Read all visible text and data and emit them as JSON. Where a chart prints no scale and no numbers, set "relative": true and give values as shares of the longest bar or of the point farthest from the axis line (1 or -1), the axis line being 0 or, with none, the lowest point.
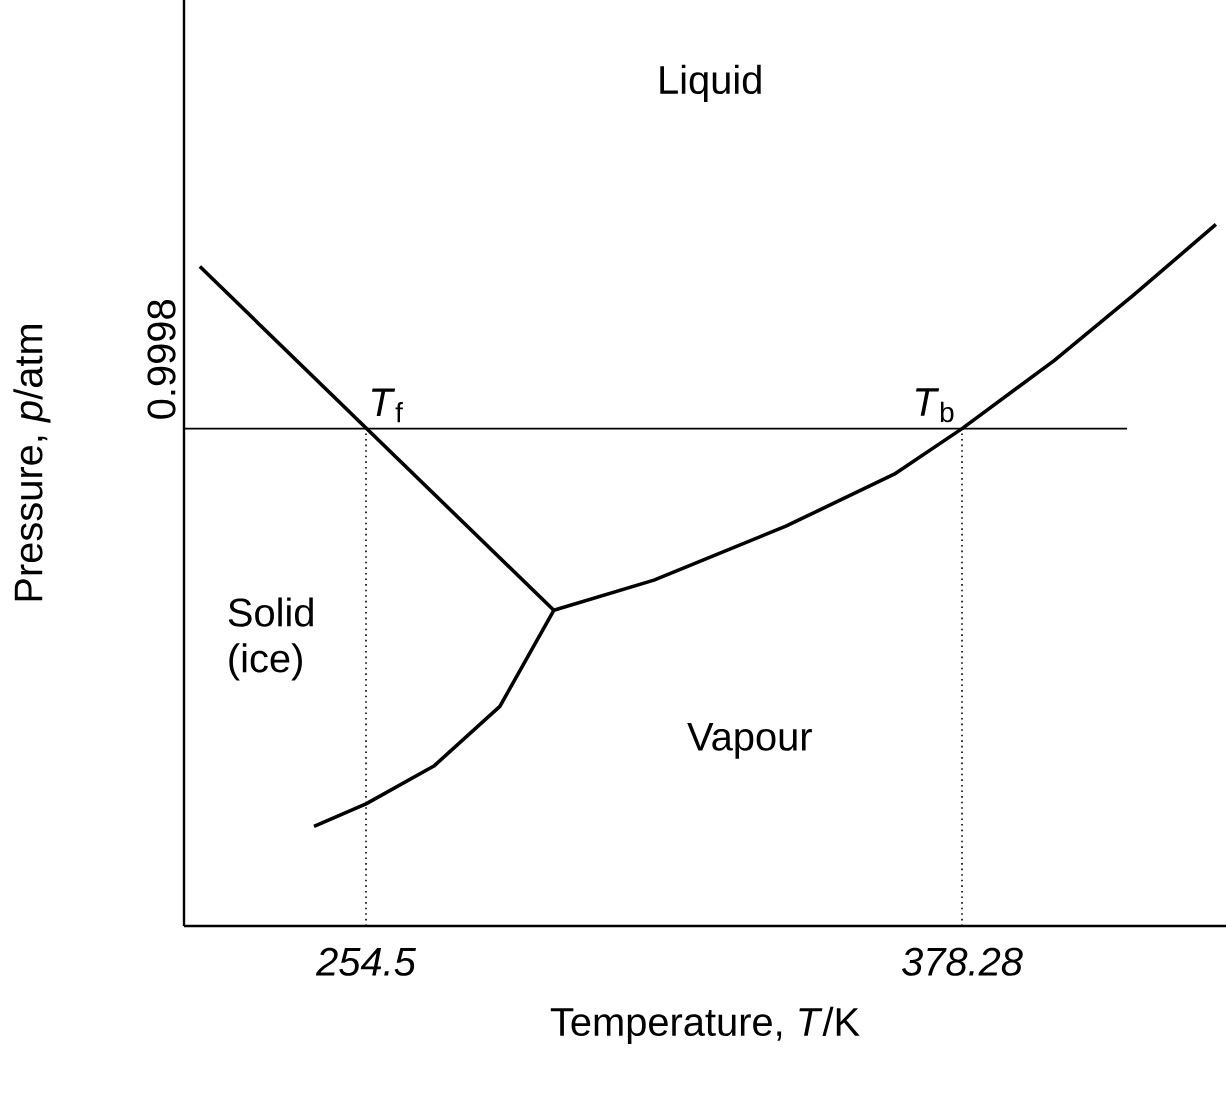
{
  "chart_data": {
    "type": "line",
    "relative": true,
    "xlabel": "Temperature, *T*/K",
    "ylabel": "Pressure, *p*/atm",
    "xlim": [
      216.7,
      433.1
    ],
    "xticks": [
      254.5,
      378.28
    ],
    "series": [
      {
        "color": "#000000",
        "x": [
          220.0,
          293.5
        ],
        "values": [
          0.94,
          0.45
        ]
      },
      {
        "color": "#000000",
        "x": [
          243.7,
          254.5,
          268.6,
          282.3,
          293.5,
          314.3,
          341.7,
          364.2,
          378.28,
          397.4,
          414.0,
          431.0
        ],
        "values": [
          0.142,
          0.174,
          0.228,
          0.313,
          0.45,
          0.493,
          0.57,
          0.644,
          0.709,
          0.806,
          0.9,
          1.0
        ]
      }
    ],
    "ref_lines": [
      {
        "axis": "y",
        "value": 0.709,
        "line_style": "solid"
      },
      {
        "axis": "x",
        "value": 254.5,
        "line_style": "dotted"
      },
      {
        "axis": "x",
        "value": 378.28,
        "line_style": "dotted"
      }
    ],
    "annotations": [
      "Liquid",
      "Solid (ice)",
      "Vapour",
      "0.9998",
      {
        "text": "*T*$_{f}$",
        "x": 254.5,
        "y": 0.709
      },
      {
        "text": "*T*$_{b}$",
        "x": 378.28,
        "y": 0.709
      }
    ]
  }
}
